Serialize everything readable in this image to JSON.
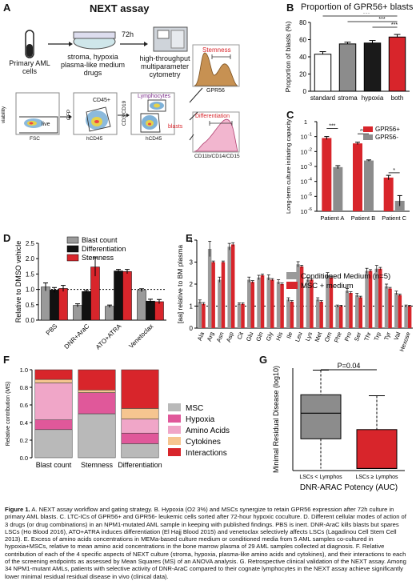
{
  "panels": {
    "A": {
      "letter": "A",
      "title": "NEXT assay",
      "steps": {
        "cells": [
          "Primary AML",
          "cells"
        ],
        "conditions": [
          "stroma, hypoxia",
          "plasma-like medium",
          "drugs"
        ],
        "duration": "72h",
        "cytometry": [
          "high-throughput",
          "multiparameter",
          "cytometry"
        ]
      },
      "gating": {
        "live": "live",
        "cd45": "CD45+",
        "lymphocytes": "Lymphocytes",
        "blasts": "blasts",
        "stemness": "Stemness",
        "differentiation": "Differentiation",
        "axes": {
          "p1x": "FSC",
          "p1y": "viability",
          "p2x": "hCD45",
          "p2y": "GFP",
          "p3x": "hCD45",
          "p3y": "CD3/CD19",
          "h1x": "GPR56",
          "h2x": "CD11b/CD14/CD15"
        }
      }
    },
    "B": {
      "letter": "B",
      "sig": [
        "***",
        "***",
        "***"
      ]
    },
    "C": {
      "letter": "C",
      "sig": [
        "***",
        "***",
        "*"
      ]
    },
    "D": {
      "letter": "D"
    },
    "E": {
      "letter": "E"
    },
    "F": {
      "letter": "F"
    },
    "G": {
      "letter": "G",
      "pvalue": "P=0.04"
    }
  },
  "chart_data": [
    {
      "id": "B",
      "type": "bar",
      "title": "Proportion of GPR56+ blasts",
      "ylabel": "Proportion of blasts (%)",
      "ylim": [
        0,
        80
      ],
      "yticks": [
        0,
        20,
        40,
        60,
        80
      ],
      "categories": [
        "standard",
        "stroma",
        "hypoxia",
        "both"
      ],
      "values": [
        43,
        55,
        56,
        63
      ],
      "errors": [
        3,
        2,
        3,
        3
      ],
      "colors": [
        "#ffffff",
        "#8c8c8c",
        "#1a1a1a",
        "#d8252b"
      ]
    },
    {
      "id": "C",
      "type": "bar",
      "ylabel": "Long-term culture initiating capacity",
      "scale": "log",
      "ylim": [
        1e-06,
        1
      ],
      "yticks": [
        "10",
        "10",
        "10",
        "10",
        "10",
        "10",
        "1"
      ],
      "ytick_exp": [
        "-6",
        "-5",
        "-4",
        "-3",
        "-2",
        "-1",
        ""
      ],
      "categories": [
        "Patient A",
        "Patient B",
        "Patient C"
      ],
      "series": [
        {
          "name": "GPR56+",
          "color": "#d8252b",
          "values": [
            0.08,
            0.035,
            0.00018
          ],
          "errors_log": [
            0.1,
            0.08,
            0.15
          ]
        },
        {
          "name": "GPR56-",
          "color": "#8c8c8c",
          "values": [
            0.0009,
            0.0025,
            5e-06
          ],
          "errors_log": [
            0.1,
            0.04,
            0.35
          ]
        }
      ]
    },
    {
      "id": "D",
      "type": "bar",
      "ylabel": "Relative to DMSO vehicle",
      "ylim": [
        0,
        2.5
      ],
      "yticks": [
        "0.0",
        "0.5",
        "1.0",
        "1.5",
        "2.0",
        "2.5"
      ],
      "reference_line": 1,
      "categories": [
        "PBS",
        "DNR+AraC",
        "ATO+ATRA",
        "Venetoclax"
      ],
      "series": [
        {
          "name": "Blast count",
          "color": "#9a9a9a",
          "values": [
            1.08,
            0.48,
            0.45,
            0.97
          ],
          "errors": [
            0.13,
            0.05,
            0.04,
            0.05
          ]
        },
        {
          "name": "Differentiation",
          "color": "#111111",
          "values": [
            0.98,
            0.93,
            1.6,
            0.62
          ],
          "errors": [
            0.08,
            0.04,
            0.05,
            0.06
          ]
        },
        {
          "name": "Stemness",
          "color": "#d8252b",
          "values": [
            1.03,
            1.73,
            1.58,
            0.6
          ],
          "errors": [
            0.1,
            0.3,
            0.07,
            0.07
          ]
        }
      ]
    },
    {
      "id": "E",
      "type": "bar",
      "ylabel": "[aa] relative to BM plasma",
      "ylim": [
        0,
        4
      ],
      "yticks": [
        "0",
        "1",
        "2",
        "3",
        "4"
      ],
      "reference_line": 1,
      "categories": [
        "Ala",
        "Arg",
        "Asn",
        "Asp",
        "Cit",
        "Glu",
        "Gln",
        "Gly",
        "His",
        "Ile",
        "Leu",
        "Lys",
        "Met",
        "Orn",
        "Phe",
        "Pro",
        "Ser",
        "Thr",
        "Trp",
        "Tyr",
        "Val",
        "Hexose"
      ],
      "series": [
        {
          "name": "Conditioned Medium (n=5)",
          "color": "#9a9a9a",
          "values": [
            1.2,
            3.6,
            2.2,
            3.7,
            1.1,
            2.2,
            2.3,
            2.3,
            2.1,
            1.3,
            2.9,
            2.2,
            1.3,
            2.4,
            1.0,
            1.7,
            1.5,
            2.6,
            2.7,
            1.9,
            1.6,
            1.0
          ],
          "errors": [
            0.08,
            0.35,
            0.12,
            0.15,
            0.05,
            0.12,
            0.1,
            0.12,
            0.1,
            0.08,
            0.12,
            0.1,
            0.08,
            0.12,
            0.05,
            0.1,
            0.08,
            0.12,
            0.15,
            0.1,
            0.08,
            0.05
          ]
        },
        {
          "name": "MSC + medium",
          "color": "#d8252b",
          "values": [
            1.1,
            3.0,
            3.0,
            3.8,
            1.1,
            2.1,
            2.4,
            2.2,
            2.0,
            1.2,
            2.8,
            2.2,
            1.2,
            2.3,
            1.0,
            1.6,
            1.4,
            2.6,
            2.7,
            1.8,
            1.5,
            1.0
          ],
          "errors": [
            0.06,
            0.05,
            0.05,
            0.08,
            0.05,
            0.06,
            0.06,
            0.05,
            0.05,
            0.05,
            0.06,
            0.05,
            0.05,
            0.06,
            0.04,
            0.05,
            0.05,
            0.06,
            0.06,
            0.05,
            0.05,
            0.04
          ]
        }
      ]
    },
    {
      "id": "F",
      "type": "bar",
      "stacked": true,
      "ylabel": "Relative contribution (MS)",
      "ylim": [
        0,
        1
      ],
      "yticks": [
        "0.0",
        "0.2",
        "0.4",
        "0.6",
        "0.8",
        "1.0"
      ],
      "categories": [
        "Blast count",
        "Stemness",
        "Differentiation"
      ],
      "series": [
        {
          "name": "MSC",
          "color": "#b9b9b9",
          "values": [
            0.32,
            0.5,
            0.16
          ]
        },
        {
          "name": "Hypoxia",
          "color": "#e0589a",
          "values": [
            0.11,
            0.24,
            0.12
          ]
        },
        {
          "name": "Amino Acids",
          "color": "#f0a6c8",
          "values": [
            0.42,
            0.0,
            0.16
          ]
        },
        {
          "name": "Cytokines",
          "color": "#f6c590",
          "values": [
            0.04,
            0.03,
            0.12
          ]
        },
        {
          "name": "Interactions",
          "color": "#d8252b",
          "values": [
            0.11,
            0.23,
            0.44
          ]
        }
      ]
    },
    {
      "id": "G",
      "type": "box",
      "ylabel": "Minimal Residual Disease (log10)",
      "xlabel": "DNR-ARAC Potency (AUC)",
      "categories": [
        "LSCs < Lymphos",
        "LSCs ≥ Lymphos"
      ],
      "boxes": [
        {
          "color": "#8c8c8c",
          "min": -5.9,
          "q1": -4.45,
          "median": -3.2,
          "q3": -2.3,
          "max": -1.1
        },
        {
          "color": "#d8252b",
          "min": -5.9,
          "q1": -5.9,
          "median": -5.9,
          "q3": -4.0,
          "max": -2.35
        }
      ],
      "ylim": [
        -6,
        -1
      ]
    }
  ],
  "caption": {
    "label": "Figure 1.",
    "text": " A. NEXT assay workflow and gating strategy. B. Hypoxia (O2 3%) and MSCs synergize to retain GPR56 expression after 72h culture in primary AML blasts. C. LTC-ICs of GPR56+ and GPR56- leukemic cells sorted after 72-hour hypoxic coculture. D. Different cellular modes of action of 3 drugs (or drug combinations) in an NPM1-mutated AML sample in keeping with published findings. PBS is inert. DNR-AraC kills blasts but spares LSCs (Ho Blood 2016), ATO+ATRA induces differentiation (El Hajj Blood 2015) and venetoclax selectively affects LSCs (Lagadinou Cell Stem Cell 2013). E. Excess of amino acids concentrations in MEMa-based culture medium or conditioned media from 5 AML samples co-cultured in hypoxia+MSCs, relative to mean amino acid concentrations in the bone marrow plasma of 29 AML samples collected at diagnosis. F. Relative contribution of each of the 4 specific aspects of NEXT culture (stroma, hypoxia, plasma-like amino acids and cytokines), and their interactions to each of the screening endpoints as assessed by Mean Squares (MS) of an ANOVA analysis. G. Retrospective clinical validation of the NEXT assay. Among 34 NPM1-mutant AMLs, patients with selective activity of DNR-AraC compared to their cognate lymphocytes in the NEXT assay achieve significantly lower minimal residual residual disease in vivo (clinical data)."
  }
}
